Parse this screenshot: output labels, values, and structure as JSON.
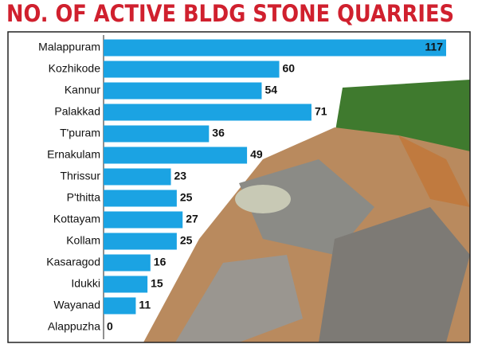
{
  "chart_data": {
    "type": "bar",
    "orientation": "horizontal",
    "title": "NO. OF ACTIVE BLDG STONE QUARRIES",
    "categories": [
      "Malappuram",
      "Kozhikode",
      "Kannur",
      "Palakkad",
      "T'puram",
      "Ernakulam",
      "Thrissur",
      "P'thitta",
      "Kottayam",
      "Kollam",
      "Kasaragod",
      "Idukki",
      "Wayanad",
      "Alappuzha"
    ],
    "values": [
      117,
      60,
      54,
      71,
      36,
      49,
      23,
      25,
      27,
      25,
      16,
      15,
      11,
      0
    ],
    "color": "#1ba3e3"
  }
}
